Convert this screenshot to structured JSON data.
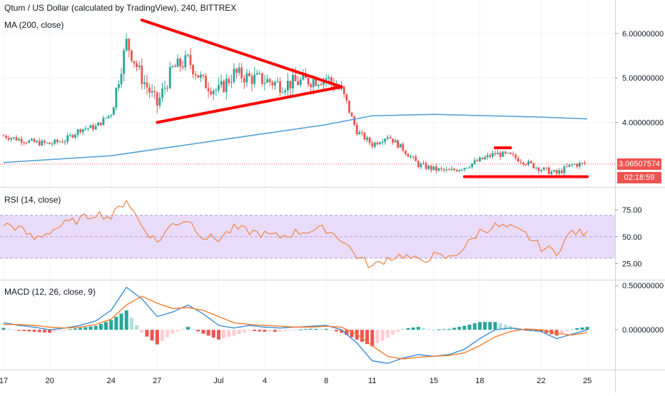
{
  "panes": {
    "price": {
      "legend_title": "Qtum / US Dollar (calculated by TradingView), 240, BITTREX",
      "legend_ma": "MA (200, close)",
      "y_ticks": [
        "6.00000000",
        "5.00000000",
        "4.00000000"
      ],
      "last_price_tag": "3.06507574",
      "countdown_tag": "02:18:59"
    },
    "rsi": {
      "legend": "RSI (14, close)",
      "y_ticks": [
        "75.00",
        "50.00",
        "25.00"
      ]
    },
    "macd": {
      "legend": "MACD (12, 26, close, 9)",
      "y_ticks": [
        "0.50000000",
        "0.00000000"
      ]
    }
  },
  "time_axis": [
    "17",
    "20",
    "24",
    "27",
    "Jul",
    "4",
    "8",
    "11",
    "15",
    "18",
    "22",
    "25"
  ],
  "colors": {
    "up": "#26a69a",
    "down": "#ef5350",
    "ma": "#4a9fd4",
    "drawing": "#ff0000",
    "rsi_line": "#ef8a4d",
    "rsi_band": "#e9dcfb",
    "macd_line": "#3d8ed6",
    "signal_line": "#f57c2c",
    "price_tag": "#ef5350",
    "countdown_tag": "#ef5350"
  },
  "chart_data": [
    {
      "type": "candlestick",
      "title": "Qtum / US Dollar (calculated by TradingView), 240, BITTREX",
      "ylim": [
        2.55,
        6.75
      ],
      "close_series_approx": {
        "x": [
          "Jun 17",
          "Jun 18",
          "Jun 19",
          "Jun 20",
          "Jun 21",
          "Jun 22",
          "Jun 23",
          "Jun 24",
          "Jun 25",
          "Jun 26",
          "Jun 27",
          "Jun 28",
          "Jun 29",
          "Jun 30",
          "Jul 1",
          "Jul 2",
          "Jul 3",
          "Jul 4",
          "Jul 5",
          "Jul 6",
          "Jul 7",
          "Jul 8",
          "Jul 9",
          "Jul 10",
          "Jul 11",
          "Jul 12",
          "Jul 13",
          "Jul 14",
          "Jul 15",
          "Jul 16",
          "Jul 17",
          "Jul 18",
          "Jul 19",
          "Jul 20",
          "Jul 21",
          "Jul 22",
          "Jul 23",
          "Jul 24",
          "Jul 25"
        ],
        "y": [
          3.7,
          3.62,
          3.55,
          3.52,
          3.6,
          3.85,
          3.9,
          4.2,
          5.8,
          5.0,
          4.4,
          5.2,
          5.4,
          4.9,
          4.7,
          5.1,
          5.0,
          4.95,
          4.85,
          4.9,
          4.95,
          5.0,
          4.7,
          3.8,
          3.5,
          3.7,
          3.4,
          3.05,
          2.95,
          2.9,
          3.0,
          3.15,
          3.3,
          3.25,
          3.1,
          2.95,
          2.85,
          3.05,
          3.07
        ]
      },
      "series": [
        {
          "name": "MA (200, close)",
          "x": [
            "Jun 17",
            "Jun 24",
            "Jul 1",
            "Jul 8",
            "Jul 11",
            "Jul 15",
            "Jul 22",
            "Jul 25"
          ],
          "values": [
            3.1,
            3.25,
            3.6,
            3.95,
            4.15,
            4.18,
            4.12,
            4.08
          ]
        }
      ],
      "last_price": 3.06507574,
      "countdown": "02:18:59",
      "annotations": [
        {
          "kind": "trendline",
          "from": [
            "Jun 26",
            6.3
          ],
          "to": [
            "Jul 9",
            4.8
          ]
        },
        {
          "kind": "trendline",
          "from": [
            "Jun 27",
            4.0
          ],
          "to": [
            "Jul 9",
            4.8
          ]
        },
        {
          "kind": "horizontal",
          "from": [
            "Jul 19",
            3.43
          ],
          "to": [
            "Jul 20",
            3.43
          ]
        },
        {
          "kind": "horizontal",
          "from": [
            "Jul 17",
            2.78
          ],
          "to": [
            "Jul 25",
            2.78
          ]
        }
      ]
    },
    {
      "type": "line",
      "title": "RSI (14, close)",
      "ylim": [
        10,
        95
      ],
      "band": [
        30,
        70
      ],
      "x": [
        "Jun 17",
        "Jun 18",
        "Jun 19",
        "Jun 20",
        "Jun 21",
        "Jun 22",
        "Jun 23",
        "Jun 24",
        "Jun 25",
        "Jun 26",
        "Jun 27",
        "Jun 28",
        "Jun 29",
        "Jun 30",
        "Jul 1",
        "Jul 2",
        "Jul 3",
        "Jul 4",
        "Jul 5",
        "Jul 6",
        "Jul 7",
        "Jul 8",
        "Jul 9",
        "Jul 10",
        "Jul 11",
        "Jul 12",
        "Jul 13",
        "Jul 14",
        "Jul 15",
        "Jul 16",
        "Jul 17",
        "Jul 18",
        "Jul 19",
        "Jul 20",
        "Jul 21",
        "Jul 22",
        "Jul 23",
        "Jul 24",
        "Jul 25"
      ],
      "values": [
        62,
        58,
        48,
        55,
        62,
        66,
        72,
        68,
        85,
        60,
        45,
        62,
        66,
        50,
        48,
        58,
        55,
        52,
        50,
        54,
        56,
        57,
        48,
        32,
        22,
        30,
        33,
        27,
        32,
        30,
        40,
        55,
        60,
        58,
        52,
        40,
        36,
        55,
        52
      ]
    },
    {
      "type": "line",
      "title": "MACD (12, 26, close, 9)",
      "ylim": [
        -0.45,
        0.55
      ],
      "x": [
        "Jun 17",
        "Jun 18",
        "Jun 19",
        "Jun 20",
        "Jun 21",
        "Jun 22",
        "Jun 23",
        "Jun 24",
        "Jun 25",
        "Jun 26",
        "Jun 27",
        "Jun 28",
        "Jun 29",
        "Jun 30",
        "Jul 1",
        "Jul 2",
        "Jul 3",
        "Jul 4",
        "Jul 5",
        "Jul 6",
        "Jul 7",
        "Jul 8",
        "Jul 9",
        "Jul 10",
        "Jul 11",
        "Jul 12",
        "Jul 13",
        "Jul 14",
        "Jul 15",
        "Jul 16",
        "Jul 17",
        "Jul 18",
        "Jul 19",
        "Jul 20",
        "Jul 21",
        "Jul 22",
        "Jul 23",
        "Jul 24",
        "Jul 25"
      ],
      "series": [
        {
          "name": "MACD",
          "values": [
            0.08,
            0.05,
            0.03,
            0.0,
            0.02,
            0.05,
            0.1,
            0.22,
            0.48,
            0.35,
            0.15,
            0.2,
            0.28,
            0.18,
            0.05,
            0.02,
            0.05,
            0.03,
            0.02,
            0.03,
            0.04,
            0.05,
            0.0,
            -0.15,
            -0.35,
            -0.38,
            -0.32,
            -0.28,
            -0.3,
            -0.28,
            -0.22,
            -0.1,
            0.0,
            0.02,
            0.0,
            -0.02,
            -0.1,
            -0.05,
            0.0
          ]
        },
        {
          "name": "Signal",
          "values": [
            0.06,
            0.06,
            0.05,
            0.03,
            0.02,
            0.03,
            0.06,
            0.12,
            0.28,
            0.38,
            0.3,
            0.24,
            0.25,
            0.22,
            0.15,
            0.08,
            0.06,
            0.05,
            0.04,
            0.03,
            0.03,
            0.04,
            0.03,
            -0.05,
            -0.18,
            -0.3,
            -0.33,
            -0.31,
            -0.3,
            -0.29,
            -0.26,
            -0.18,
            -0.08,
            -0.02,
            0.01,
            0.0,
            -0.04,
            -0.06,
            -0.03
          ]
        }
      ]
    }
  ]
}
